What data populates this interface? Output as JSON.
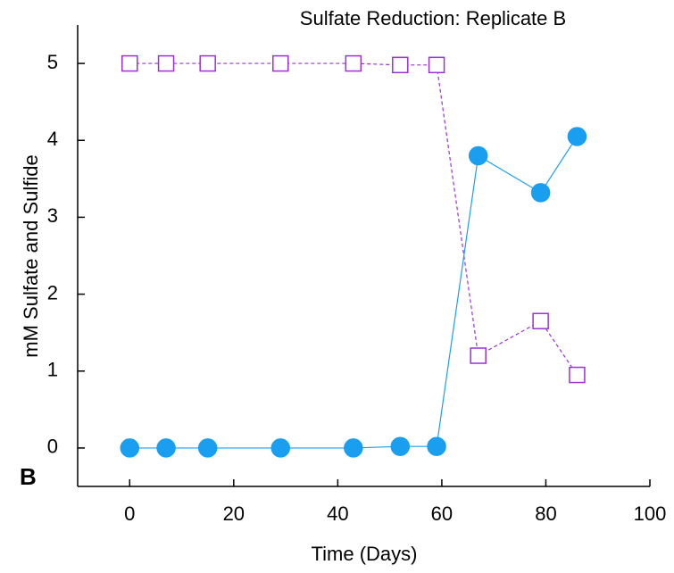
{
  "chart_data": {
    "type": "line",
    "title": "Sulfate Reduction: Replicate B",
    "panel_label": "B",
    "x_label": "Time (Days)",
    "y_label": "mM Sulfate and Sulfide",
    "x": [
      0,
      7,
      15,
      29,
      43,
      52,
      59,
      67,
      79,
      86
    ],
    "series": [
      {
        "color": "#9b30d9",
        "marker": "square",
        "filled": false,
        "dashed": true,
        "values": [
          5,
          5,
          5,
          5,
          5,
          4.98,
          4.98,
          1.2,
          1.65,
          0.95
        ]
      },
      {
        "color": "#1a9ff0",
        "marker": "circle",
        "filled": true,
        "dashed": false,
        "values": [
          0,
          0,
          0,
          0,
          0,
          0.02,
          0.02,
          3.8,
          3.32,
          4.05
        ]
      }
    ],
    "xlim": [
      -10,
      100
    ],
    "xticks": [
      0,
      20,
      40,
      60,
      80,
      100
    ],
    "ylim": [
      -0.5,
      5.5
    ],
    "yticks": [
      0,
      1,
      2,
      3,
      4,
      5
    ]
  }
}
